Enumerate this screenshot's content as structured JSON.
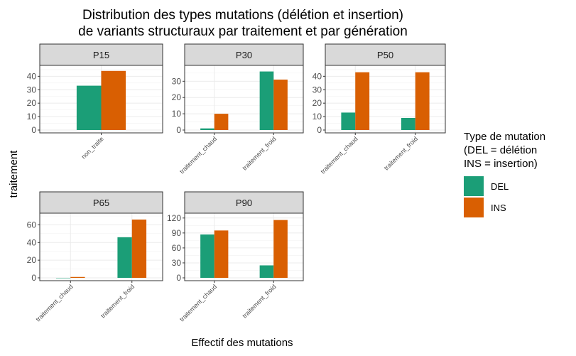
{
  "chart_data": {
    "type": "bar",
    "title_lines": [
      "Distribution des types mutations (délétion et insertion)",
      "de variants structuraux par traitement et par génération"
    ],
    "xlabel": "Effectif des mutations",
    "ylabel": "traitement",
    "legend": {
      "title_lines": [
        "Type de mutation",
        "(DEL = délétion",
        "INS = insertion)"
      ],
      "placement": "right",
      "entries": [
        {
          "name": "DEL",
          "color": "#1b9e77"
        },
        {
          "name": "INS",
          "color": "#d95f02"
        }
      ]
    },
    "grid": true,
    "panels": [
      {
        "label": "P15",
        "categories": [
          "non_traite"
        ],
        "ylim": [
          0,
          46
        ],
        "yticks": [
          0,
          10,
          20,
          30,
          40
        ],
        "series": [
          {
            "name": "DEL",
            "values": [
              33
            ]
          },
          {
            "name": "INS",
            "values": [
              44
            ]
          }
        ]
      },
      {
        "label": "P30",
        "categories": [
          "traitement_chaud",
          "traitement_froid"
        ],
        "ylim": [
          0,
          38
        ],
        "yticks": [
          0,
          10,
          20,
          30
        ],
        "series": [
          {
            "name": "DEL",
            "values": [
              1,
              36
            ]
          },
          {
            "name": "INS",
            "values": [
              10,
              31
            ]
          }
        ]
      },
      {
        "label": "P50",
        "categories": [
          "traitement_chaud",
          "traitement_froid"
        ],
        "ylim": [
          0,
          46
        ],
        "yticks": [
          0,
          10,
          20,
          30,
          40
        ],
        "series": [
          {
            "name": "DEL",
            "values": [
              13,
              9
            ]
          },
          {
            "name": "INS",
            "values": [
              43,
              43
            ]
          }
        ]
      },
      {
        "label": "P65",
        "categories": [
          "traitement_chaud",
          "traitement_froid"
        ],
        "ylim": [
          0,
          70
        ],
        "yticks": [
          0,
          20,
          40,
          60
        ],
        "series": [
          {
            "name": "DEL",
            "values": [
              0,
              46
            ]
          },
          {
            "name": "INS",
            "values": [
              1,
              66
            ]
          }
        ]
      },
      {
        "label": "P90",
        "categories": [
          "traitement_chaud",
          "traitement_froid"
        ],
        "ylim": [
          0,
          124
        ],
        "yticks": [
          0,
          30,
          60,
          90,
          120
        ],
        "series": [
          {
            "name": "DEL",
            "values": [
              87,
              25
            ]
          },
          {
            "name": "INS",
            "values": [
              95,
              116
            ]
          }
        ]
      }
    ]
  }
}
